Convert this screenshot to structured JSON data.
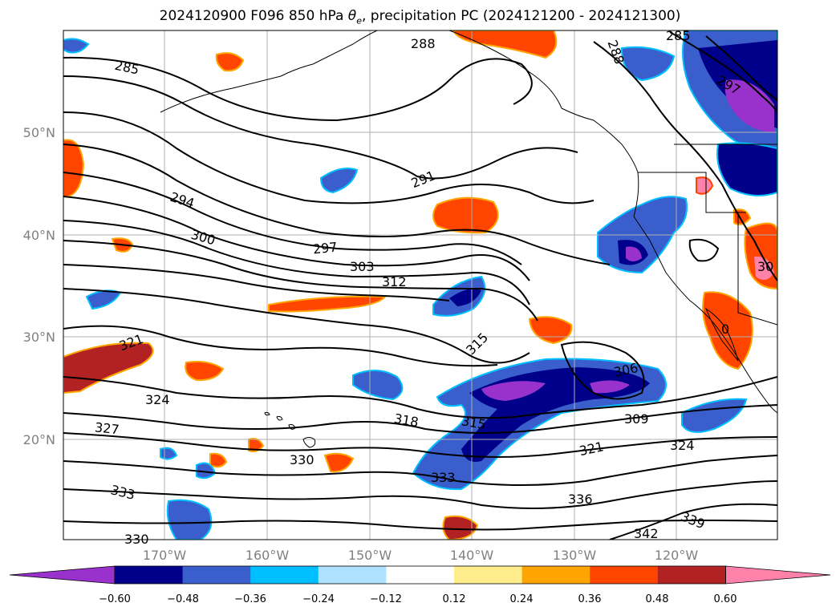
{
  "title": {
    "run": "2024120900",
    "forecast": "F096",
    "level": "850 hPa",
    "var_symbol": "θ",
    "var_sub": "e",
    "rest": ", precipitation PC (2024121200 - 2024121300)"
  },
  "axes": {
    "lon_labels": [
      "170°W",
      "160°W",
      "150°W",
      "140°W",
      "130°W",
      "120°W"
    ],
    "lat_labels": [
      "50°N",
      "40°N",
      "30°N",
      "20°N"
    ],
    "gridlines": true
  },
  "contour_labels": [
    "285",
    "288",
    "288",
    "285",
    "297",
    "291",
    "294",
    "300",
    "297",
    "303",
    "312",
    "315",
    "321",
    "324",
    "327",
    "330",
    "333",
    "318",
    "315",
    "306",
    "309",
    "321",
    "324",
    "330",
    "333",
    "336",
    "339",
    "342",
    "30",
    "0"
  ],
  "colorbar": {
    "orientation": "horizontal",
    "extend": "both",
    "tick_labels": [
      "−0.60",
      "−0.48",
      "−0.36",
      "−0.24",
      "−0.12",
      "0.12",
      "0.24",
      "0.36",
      "0.48",
      "0.60"
    ],
    "colors": [
      "#9932cc",
      "#00008b",
      "#3a5fcd",
      "#00bfff",
      "#b0e2ff",
      "#ffffff",
      "#ffec8b",
      "#ffa500",
      "#ff4500",
      "#b22222",
      "#ff82ab"
    ]
  },
  "colors": {
    "land_line": "#000000",
    "grid": "#b0b0b0",
    "contour": "#000000"
  }
}
